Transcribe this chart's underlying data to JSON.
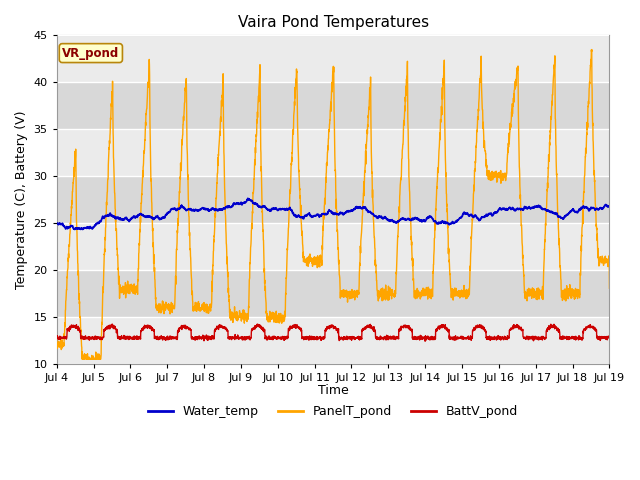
{
  "title": "Vaira Pond Temperatures",
  "ylabel": "Temperature (C), Battery (V)",
  "xlabel": "Time",
  "site_label": "VR_pond",
  "ylim": [
    10,
    45
  ],
  "xlim": [
    0,
    15
  ],
  "xtick_labels": [
    "Jul 4",
    "Jul 5",
    "Jul 6",
    "Jul 7",
    "Jul 8",
    "Jul 9",
    "Jul 10",
    "Jul 11",
    "Jul 12",
    "Jul 13",
    "Jul 14",
    "Jul 15",
    "Jul 16",
    "Jul 17",
    "Jul 18",
    "Jul 19"
  ],
  "xtick_positions": [
    0,
    1,
    2,
    3,
    4,
    5,
    6,
    7,
    8,
    9,
    10,
    11,
    12,
    13,
    14,
    15
  ],
  "ytick_positions": [
    10,
    15,
    20,
    25,
    30,
    35,
    40,
    45
  ],
  "grid_color": "#ffffff",
  "bg_color_light": "#ebebeb",
  "bg_color_dark": "#d8d8d8",
  "water_temp_color": "#0000cc",
  "panel_temp_color": "#ffa500",
  "batt_color": "#cc0000",
  "legend_labels": [
    "Water_temp",
    "PanelT_pond",
    "BattV_pond"
  ],
  "title_fontsize": 11,
  "axis_label_fontsize": 9,
  "tick_fontsize": 8,
  "legend_fontsize": 9
}
